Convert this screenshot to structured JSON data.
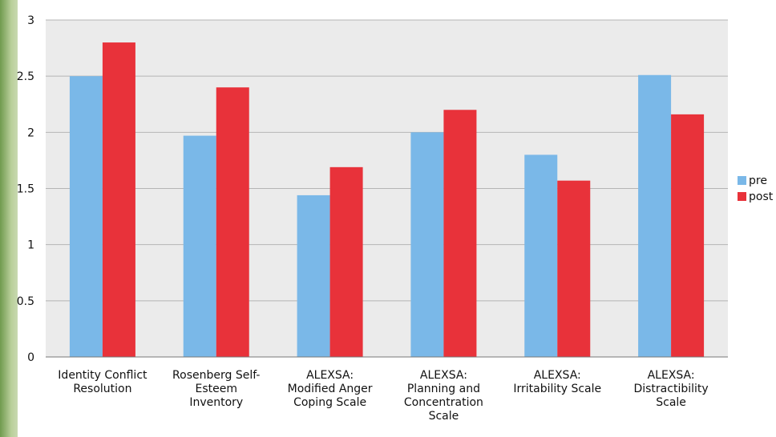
{
  "chart_data": {
    "type": "bar",
    "title": "",
    "xlabel": "",
    "ylabel": "",
    "categories": [
      [
        "Identity Conflict",
        "Resolution"
      ],
      [
        "Rosenberg Self-",
        "Esteem",
        "Inventory"
      ],
      [
        "ALEXSA:",
        "Modified Anger",
        "Coping Scale"
      ],
      [
        "ALEXSA:",
        "Planning and",
        "Concentration",
        "Scale"
      ],
      [
        "ALEXSA:",
        "Irritability Scale"
      ],
      [
        "ALEXSA:",
        "Distractibility",
        "Scale"
      ]
    ],
    "series": [
      {
        "name": "pre",
        "color": "#7ab8e8",
        "values": [
          2.5,
          1.97,
          1.44,
          2.0,
          1.8,
          2.51
        ]
      },
      {
        "name": "post",
        "color": "#e8323a",
        "values": [
          2.8,
          2.4,
          1.69,
          2.2,
          1.57,
          2.16
        ]
      }
    ],
    "ylim": [
      0,
      3
    ],
    "yticks": [
      "0",
      "0.5",
      "1",
      "1.5",
      "2",
      "2.5",
      "3"
    ],
    "grid": true,
    "legend_position": "right"
  }
}
